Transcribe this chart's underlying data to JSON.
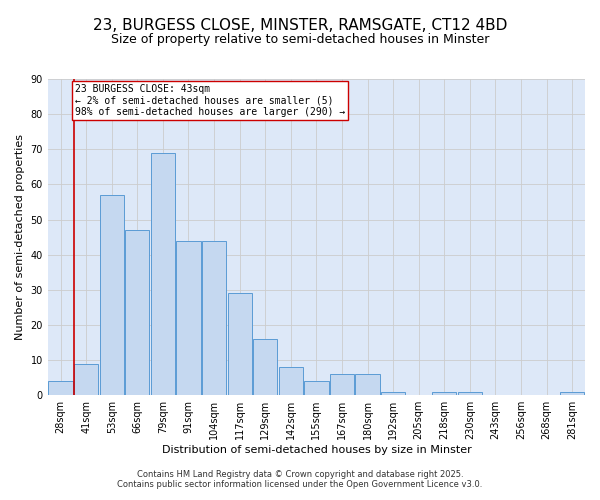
{
  "title_line1": "23, BURGESS CLOSE, MINSTER, RAMSGATE, CT12 4BD",
  "title_line2": "Size of property relative to semi-detached houses in Minster",
  "xlabel": "Distribution of semi-detached houses by size in Minster",
  "ylabel": "Number of semi-detached properties",
  "categories": [
    "28sqm",
    "41sqm",
    "53sqm",
    "66sqm",
    "79sqm",
    "91sqm",
    "104sqm",
    "117sqm",
    "129sqm",
    "142sqm",
    "155sqm",
    "167sqm",
    "180sqm",
    "192sqm",
    "205sqm",
    "218sqm",
    "230sqm",
    "243sqm",
    "256sqm",
    "268sqm",
    "281sqm"
  ],
  "values": [
    4,
    9,
    57,
    47,
    69,
    44,
    44,
    29,
    16,
    8,
    4,
    6,
    6,
    1,
    0,
    1,
    1,
    0,
    0,
    0,
    1
  ],
  "bar_color": "#c5d8f0",
  "bar_edge_color": "#5b9bd5",
  "subject_label": "23 BURGESS CLOSE: 43sqm",
  "annotation_line1": "← 2% of semi-detached houses are smaller (5)",
  "annotation_line2": "98% of semi-detached houses are larger (290) →",
  "annotation_box_color": "#ffffff",
  "annotation_box_edge": "#cc0000",
  "subject_line_color": "#cc0000",
  "ylim": [
    0,
    90
  ],
  "yticks": [
    0,
    10,
    20,
    30,
    40,
    50,
    60,
    70,
    80,
    90
  ],
  "grid_color": "#cccccc",
  "background_color": "#dde8f8",
  "footnote_line1": "Contains HM Land Registry data © Crown copyright and database right 2025.",
  "footnote_line2": "Contains public sector information licensed under the Open Government Licence v3.0.",
  "title_fontsize": 11,
  "subtitle_fontsize": 9,
  "axis_label_fontsize": 8,
  "tick_fontsize": 7,
  "annot_fontsize": 7
}
